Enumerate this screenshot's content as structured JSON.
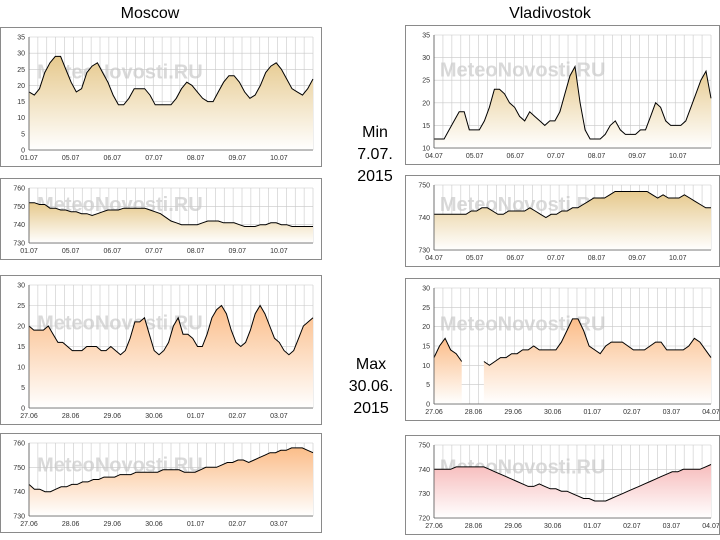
{
  "titles": {
    "left": "Moscow",
    "right": "Vladivostok"
  },
  "min_label": {
    "line1": "Min",
    "line2": "7.07.",
    "line3": "2015"
  },
  "max_label": {
    "line1": "Max",
    "line2": "30.06.",
    "line3": "2015"
  },
  "watermark": "MeteoNovosti.RU",
  "colors": {
    "min_fill": "#e6c98d",
    "max_fill": "#fbbd89",
    "press_fill_max_right": "#f7bcbc",
    "line": "#000000",
    "grid": "#c8c8c8"
  },
  "chart_data": [
    {
      "id": "moscow_min_temp",
      "type": "area",
      "title": "Moscow",
      "ylim": [
        0,
        35
      ],
      "yticks": [
        "0",
        "5",
        "10",
        "15",
        "20",
        "25",
        "30",
        "35"
      ],
      "xticks": [
        "01.07",
        "05.07",
        "06.07",
        "07.07",
        "08.07",
        "09.07",
        "10.07"
      ],
      "values": [
        18,
        17,
        19,
        24,
        27,
        29,
        29,
        25,
        21,
        18,
        19,
        24,
        26,
        27,
        24,
        21,
        17,
        14,
        14,
        16,
        19,
        19,
        19,
        17,
        14,
        14,
        14,
        14,
        16,
        19,
        21,
        20,
        18,
        16,
        15,
        15,
        18,
        21,
        23,
        23,
        21,
        18,
        16,
        17,
        20,
        24,
        26,
        27,
        25,
        22,
        19,
        18,
        17,
        19,
        22
      ]
    },
    {
      "id": "moscow_min_press",
      "type": "area",
      "ylim": [
        730,
        760
      ],
      "yticks": [
        "730",
        "740",
        "750",
        "760"
      ],
      "xticks": [
        "01.07",
        "05.07",
        "06.07",
        "07.07",
        "08.07",
        "09.07",
        "10.07"
      ],
      "values": [
        752,
        752,
        751,
        751,
        749,
        749,
        748,
        748,
        747,
        747,
        746,
        746,
        745,
        746,
        747,
        748,
        748,
        748,
        749,
        749,
        749,
        749,
        749,
        748,
        747,
        746,
        744,
        742,
        741,
        740,
        740,
        740,
        740,
        741,
        742,
        742,
        742,
        741,
        741,
        741,
        740,
        739,
        739,
        739,
        740,
        740,
        741,
        741,
        740,
        740,
        739,
        739,
        739,
        739,
        739
      ]
    },
    {
      "id": "vlad_min_temp",
      "type": "area",
      "title": "Vladivostok",
      "ylim": [
        10,
        35
      ],
      "yticks": [
        "10",
        "15",
        "20",
        "25",
        "30",
        "35"
      ],
      "xticks": [
        "04.07",
        "05.07",
        "06.07",
        "07.07",
        "08.07",
        "09.07",
        "10.07"
      ],
      "values": [
        12,
        12,
        12,
        14,
        16,
        18,
        18,
        14,
        14,
        14,
        16,
        19,
        23,
        23,
        22,
        20,
        19,
        17,
        16,
        18,
        17,
        16,
        15,
        16,
        16,
        18,
        22,
        26,
        28,
        20,
        14,
        12,
        12,
        12,
        13,
        15,
        16,
        14,
        13,
        13,
        13,
        14,
        14,
        17,
        20,
        19,
        16,
        15,
        15,
        15,
        16,
        19,
        22,
        25,
        27,
        21
      ]
    },
    {
      "id": "vlad_min_press",
      "type": "area",
      "ylim": [
        730,
        750
      ],
      "yticks": [
        "730",
        "740",
        "750"
      ],
      "xticks": [
        "04.07",
        "05.07",
        "06.07",
        "07.07",
        "08.07",
        "09.07",
        "10.07"
      ],
      "values": [
        741,
        741,
        741,
        741,
        741,
        741,
        741,
        742,
        742,
        743,
        743,
        742,
        741,
        741,
        742,
        742,
        742,
        742,
        743,
        742,
        741,
        740,
        741,
        741,
        742,
        742,
        743,
        743,
        744,
        745,
        746,
        746,
        746,
        747,
        748,
        748,
        748,
        748,
        748,
        748,
        748,
        747,
        746,
        747,
        746,
        746,
        746,
        747,
        746,
        745,
        744,
        743,
        743
      ]
    },
    {
      "id": "moscow_max_temp",
      "type": "area",
      "ylim": [
        0,
        30
      ],
      "yticks": [
        "0",
        "5",
        "10",
        "15",
        "20",
        "25",
        "30"
      ],
      "xticks": [
        "27.06",
        "28.06",
        "29.06",
        "30.06",
        "01.07",
        "02.07",
        "03.07"
      ],
      "values": [
        20,
        19,
        19,
        19,
        20,
        18,
        16,
        16,
        15,
        14,
        14,
        14,
        15,
        15,
        15,
        14,
        14,
        15,
        14,
        13,
        14,
        17,
        21,
        21,
        22,
        18,
        14,
        13,
        14,
        16,
        20,
        22,
        18,
        18,
        17,
        15,
        15,
        18,
        22,
        24,
        25,
        23,
        19,
        16,
        15,
        16,
        19,
        23,
        25,
        23,
        20,
        17,
        16,
        14,
        13,
        14,
        17,
        20,
        21,
        22
      ]
    },
    {
      "id": "moscow_max_press",
      "type": "area",
      "ylim": [
        730,
        760
      ],
      "yticks": [
        "730",
        "740",
        "750",
        "760"
      ],
      "xticks": [
        "27.06",
        "28.06",
        "29.06",
        "30.06",
        "01.07",
        "02.07",
        "03.07"
      ],
      "values": [
        743,
        741,
        741,
        740,
        740,
        741,
        742,
        742,
        743,
        743,
        744,
        744,
        745,
        745,
        746,
        746,
        746,
        747,
        747,
        747,
        748,
        748,
        748,
        748,
        748,
        749,
        749,
        749,
        749,
        748,
        748,
        748,
        749,
        750,
        750,
        750,
        751,
        752,
        752,
        753,
        753,
        752,
        753,
        754,
        755,
        756,
        756,
        757,
        757,
        758,
        758,
        758,
        757,
        756
      ]
    },
    {
      "id": "vlad_max_temp",
      "type": "area",
      "ylim": [
        0,
        30
      ],
      "yticks": [
        "0",
        "5",
        "10",
        "15",
        "20",
        "25",
        "30"
      ],
      "xticks": [
        "27.06",
        "28.06",
        "29.06",
        "30.06",
        "01.07",
        "02.07",
        "03.07",
        "04.07"
      ],
      "values": [
        12,
        15,
        17,
        14,
        13,
        11,
        null,
        null,
        null,
        11,
        10,
        11,
        12,
        12,
        13,
        13,
        14,
        14,
        15,
        14,
        14,
        14,
        14,
        16,
        19,
        22,
        22,
        19,
        15,
        14,
        13,
        15,
        16,
        16,
        16,
        15,
        14,
        14,
        14,
        15,
        16,
        16,
        14,
        14,
        14,
        14,
        15,
        17,
        16,
        14,
        12
      ]
    },
    {
      "id": "vlad_max_press",
      "type": "area",
      "ylim": [
        720,
        750
      ],
      "yticks": [
        "720",
        "730",
        "740",
        "750"
      ],
      "xticks": [
        "27.06",
        "28.06",
        "29.06",
        "30.06",
        "01.07",
        "02.07",
        "03.07",
        "04.07"
      ],
      "values": [
        740,
        740,
        740,
        740,
        741,
        741,
        741,
        741,
        741,
        741,
        740,
        739,
        738,
        737,
        736,
        735,
        734,
        733,
        733,
        734,
        733,
        732,
        732,
        731,
        731,
        730,
        729,
        728,
        728,
        727,
        727,
        727,
        728,
        729,
        730,
        731,
        732,
        733,
        734,
        735,
        736,
        737,
        738,
        739,
        739,
        740,
        740,
        740,
        740,
        741,
        742
      ]
    }
  ]
}
